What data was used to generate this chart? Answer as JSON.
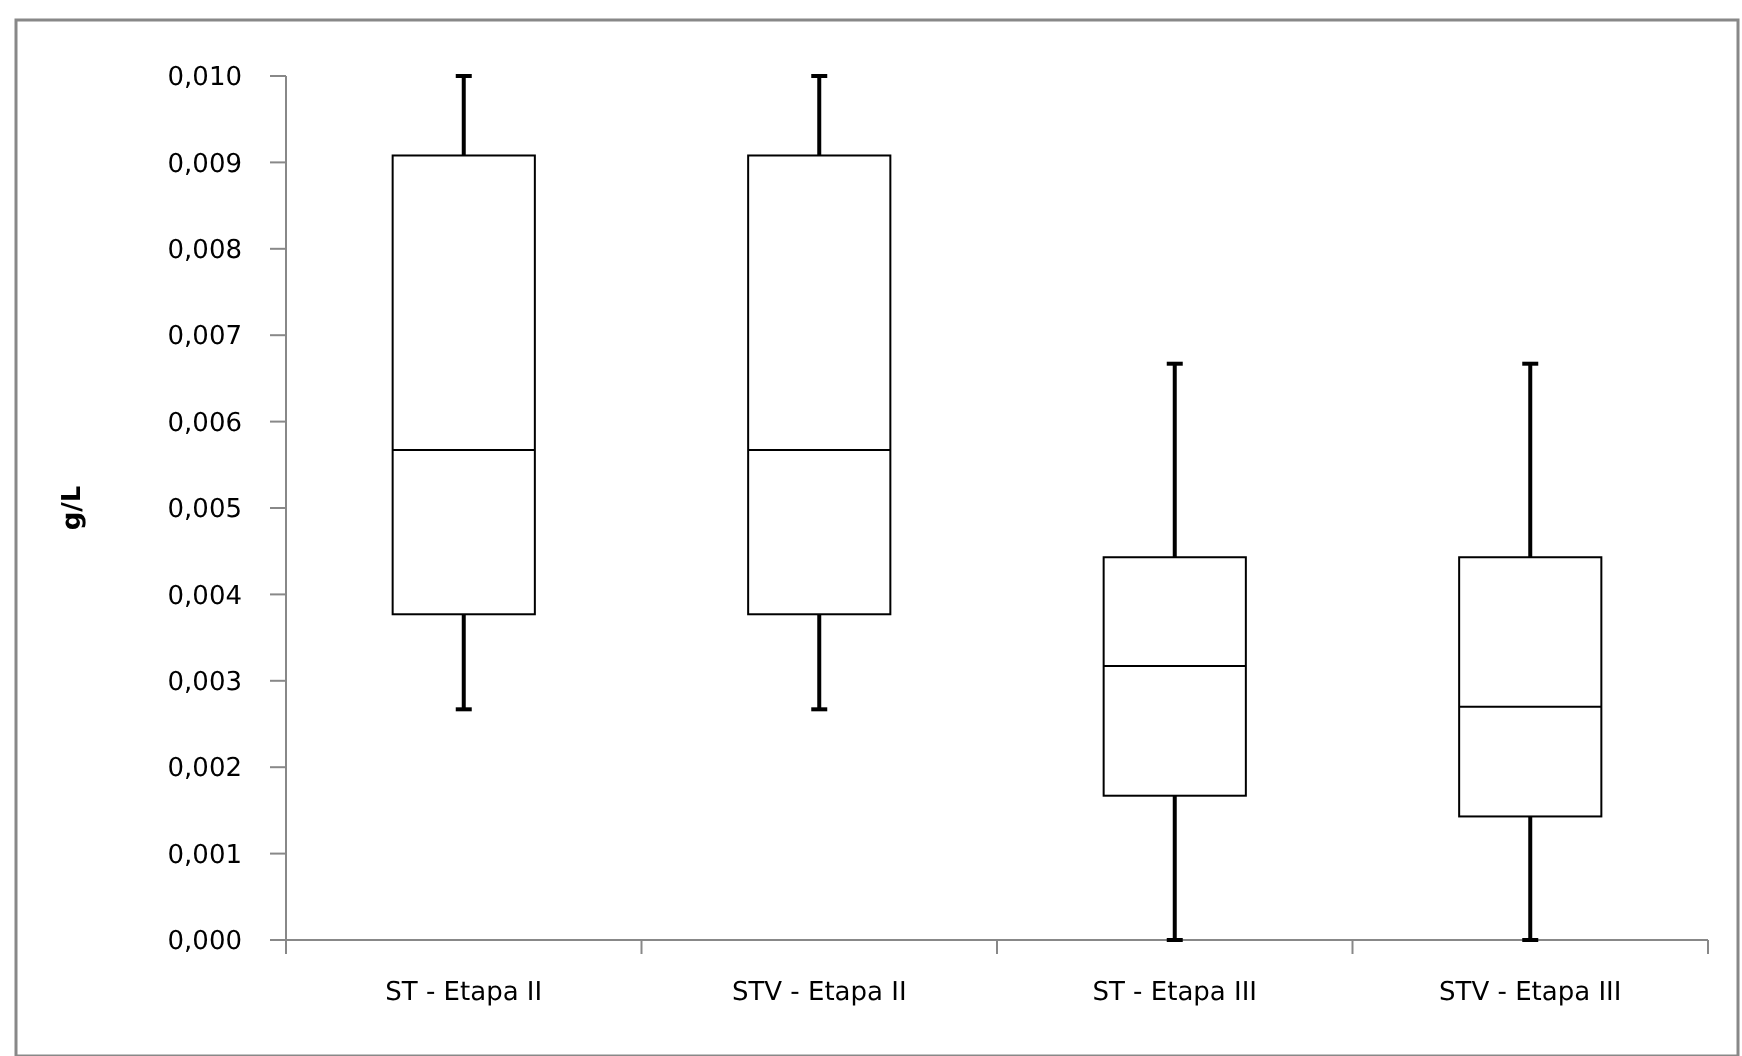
{
  "chart_data": {
    "type": "box",
    "ylabel": "g/L",
    "categories": [
      "ST - Etapa II",
      "STV - Etapa II",
      "ST - Etapa III",
      "STV - Etapa III"
    ],
    "boxes": [
      {
        "low": 0.00267,
        "q1": 0.00377,
        "median": 0.00567,
        "q3": 0.00908,
        "high": 0.01
      },
      {
        "low": 0.00267,
        "q1": 0.00377,
        "median": 0.00567,
        "q3": 0.00908,
        "high": 0.01
      },
      {
        "low": 0,
        "q1": 0.00167,
        "median": 0.00317,
        "q3": 0.00443,
        "high": 0.00667
      },
      {
        "low": 0,
        "q1": 0.00143,
        "median": 0.0027,
        "q3": 0.00443,
        "high": 0.00667
      }
    ],
    "ylim": [
      0,
      0.01
    ],
    "yticks": [
      {
        "value": 0,
        "label": "0,000"
      },
      {
        "value": 0.001,
        "label": "0,001"
      },
      {
        "value": 0.002,
        "label": "0,002"
      },
      {
        "value": 0.003,
        "label": "0,003"
      },
      {
        "value": 0.004,
        "label": "0,004"
      },
      {
        "value": 0.005,
        "label": "0,005"
      },
      {
        "value": 0.006,
        "label": "0,006"
      },
      {
        "value": 0.007,
        "label": "0,007"
      },
      {
        "value": 0.008,
        "label": "0,008"
      },
      {
        "value": 0.009,
        "label": "0,009"
      },
      {
        "value": 0.01,
        "label": "0,010"
      }
    ],
    "grid": false
  }
}
